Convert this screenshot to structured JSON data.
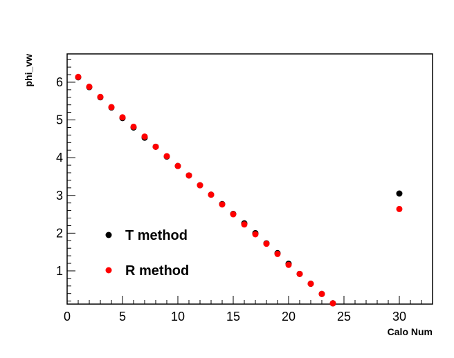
{
  "chart_data": {
    "type": "scatter",
    "xlabel": "Calo Num",
    "ylabel": "phi_vw",
    "xlim": [
      0,
      33
    ],
    "ylim": [
      0.12,
      6.75
    ],
    "x_ticks": [
      0,
      5,
      10,
      15,
      20,
      25,
      30
    ],
    "y_ticks": [
      1,
      2,
      3,
      4,
      5,
      6
    ],
    "grid": false,
    "legend_position": "bottom-left",
    "series": [
      {
        "name": "T method",
        "color": "#000000",
        "points": [
          [
            1,
            6.13
          ],
          [
            2,
            5.87
          ],
          [
            3,
            5.6
          ],
          [
            4,
            5.33
          ],
          [
            5,
            5.05
          ],
          [
            6,
            4.8
          ],
          [
            7,
            4.53
          ],
          [
            8,
            4.29
          ],
          [
            9,
            4.03
          ],
          [
            10,
            3.78
          ],
          [
            11,
            3.53
          ],
          [
            12,
            3.27
          ],
          [
            13,
            3.02
          ],
          [
            14,
            2.77
          ],
          [
            15,
            2.51
          ],
          [
            16,
            2.26
          ],
          [
            17,
            2.0
          ],
          [
            18,
            1.73
          ],
          [
            19,
            1.47
          ],
          [
            20,
            1.19
          ],
          [
            21,
            0.92
          ],
          [
            22,
            0.66
          ],
          [
            23,
            0.39
          ],
          [
            24,
            0.14
          ],
          [
            30,
            3.05
          ]
        ]
      },
      {
        "name": "R method",
        "color": "#ff0000",
        "points": [
          [
            1,
            6.14
          ],
          [
            2,
            5.88
          ],
          [
            3,
            5.61
          ],
          [
            4,
            5.34
          ],
          [
            5,
            5.07
          ],
          [
            6,
            4.82
          ],
          [
            7,
            4.56
          ],
          [
            8,
            4.29
          ],
          [
            9,
            4.04
          ],
          [
            10,
            3.78
          ],
          [
            11,
            3.53
          ],
          [
            12,
            3.27
          ],
          [
            13,
            3.02
          ],
          [
            14,
            2.76
          ],
          [
            15,
            2.5
          ],
          [
            16,
            2.23
          ],
          [
            17,
            1.97
          ],
          [
            18,
            1.72
          ],
          [
            19,
            1.45
          ],
          [
            20,
            1.16
          ],
          [
            21,
            0.92
          ],
          [
            22,
            0.66
          ],
          [
            23,
            0.39
          ],
          [
            24,
            0.14
          ],
          [
            30,
            2.64
          ]
        ]
      }
    ]
  }
}
